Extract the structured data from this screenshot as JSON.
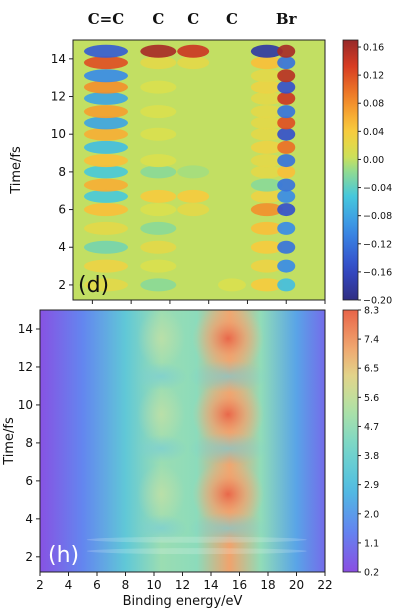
{
  "chart_data": [
    {
      "type": "heatmap",
      "panel_label": "(d)",
      "top_labels": [
        "C=C",
        "C",
        "C",
        "C",
        "Br"
      ],
      "top_label_positions": [
        10.7,
        13.4,
        15.2,
        17.2,
        20.0
      ],
      "xlim": [
        9,
        22
      ],
      "ylim": [
        1.2,
        15.0
      ],
      "ylabel": "Time/fs",
      "yticks": [
        2,
        4,
        6,
        8,
        10,
        12,
        14
      ],
      "colorbar": {
        "min": -0.2,
        "max": 0.17,
        "ticks": [
          0.16,
          0.12,
          0.08,
          0.04,
          0.0,
          -0.04,
          -0.08,
          -0.12,
          -0.16,
          -0.2
        ],
        "tick_labels": [
          "0.16",
          "0.12",
          "0.08",
          "0.04",
          "0.00",
          "−0.04",
          "−0.08",
          "−0.12",
          "−0.16",
          "−0.20"
        ],
        "colormap": "jet"
      },
      "columns": [
        10.7,
        13.4,
        15.2,
        17.2,
        19.0,
        20.0
      ],
      "bands": [
        {
          "t": 2.0,
          "values": [
            0.02,
            -0.02,
            0.0,
            0.01,
            0.04,
            -0.06
          ]
        },
        {
          "t": 3.0,
          "values": [
            0.03,
            0.01,
            0.0,
            0.0,
            0.03,
            -0.1
          ]
        },
        {
          "t": 4.0,
          "values": [
            -0.03,
            0.02,
            0.0,
            0.0,
            0.04,
            -0.12
          ]
        },
        {
          "t": 5.0,
          "values": [
            0.02,
            -0.02,
            0.0,
            0.0,
            0.05,
            -0.1
          ]
        },
        {
          "t": 6.0,
          "values": [
            0.05,
            0.01,
            0.02,
            0.0,
            0.08,
            -0.15
          ]
        },
        {
          "t": 6.7,
          "values": [
            -0.05,
            0.04,
            0.04,
            0.0,
            0.03,
            -0.1
          ]
        },
        {
          "t": 7.3,
          "values": [
            0.06,
            0.0,
            0.0,
            0.0,
            -0.02,
            -0.12
          ]
        },
        {
          "t": 8.0,
          "values": [
            -0.05,
            -0.02,
            -0.01,
            0.0,
            0.02,
            0.05
          ]
        },
        {
          "t": 8.6,
          "values": [
            0.05,
            0.01,
            0.0,
            0.0,
            0.02,
            -0.12
          ]
        },
        {
          "t": 9.3,
          "values": [
            -0.06,
            0.0,
            0.0,
            0.0,
            0.03,
            0.1
          ]
        },
        {
          "t": 10.0,
          "values": [
            0.06,
            0.01,
            0.0,
            0.0,
            0.02,
            -0.15
          ]
        },
        {
          "t": 10.6,
          "values": [
            -0.08,
            0.0,
            0.0,
            0.0,
            0.02,
            0.12
          ]
        },
        {
          "t": 11.2,
          "values": [
            0.07,
            0.01,
            0.0,
            0.0,
            0.02,
            -0.12
          ]
        },
        {
          "t": 11.9,
          "values": [
            -0.08,
            0.0,
            0.0,
            0.0,
            0.02,
            0.14
          ]
        },
        {
          "t": 12.5,
          "values": [
            0.08,
            0.01,
            0.0,
            0.0,
            0.03,
            -0.15
          ]
        },
        {
          "t": 13.1,
          "values": [
            -0.1,
            0.0,
            0.0,
            0.0,
            0.02,
            0.15
          ]
        },
        {
          "t": 13.8,
          "values": [
            0.12,
            0.02,
            0.02,
            0.0,
            0.05,
            -0.12
          ]
        },
        {
          "t": 14.4,
          "values": [
            -0.14,
            0.16,
            0.14,
            0.0,
            -0.18,
            0.16
          ]
        }
      ]
    },
    {
      "type": "heatmap",
      "panel_label": "(h)",
      "xlabel": "Binding energy/eV",
      "xlim": [
        2,
        22
      ],
      "xticks": [
        2,
        4,
        6,
        8,
        10,
        12,
        14,
        16,
        18,
        20,
        22
      ],
      "ylim": [
        1.2,
        15.0
      ],
      "ylabel": "Time/fs",
      "yticks": [
        2,
        4,
        6,
        8,
        10,
        12,
        14
      ],
      "colorbar": {
        "min": 0.2,
        "max": 8.3,
        "ticks": [
          8.3,
          7.4,
          6.5,
          5.6,
          4.7,
          3.8,
          2.9,
          2.0,
          1.1,
          0.2
        ],
        "tick_labels": [
          "8.3",
          "7.4",
          "6.5",
          "5.6",
          "4.7",
          "3.8",
          "2.9",
          "2.0",
          "1.1",
          "0.2"
        ],
        "colormap": "rainbow"
      },
      "profile": {
        "energies": [
          2,
          5,
          8,
          10.5,
          13,
          15.3,
          17.5,
          20,
          22
        ],
        "levels": [
          0.3,
          1.5,
          3.3,
          4.8,
          4.5,
          7.2,
          4.6,
          2.2,
          0.9
        ]
      },
      "time_peaks": [
        5.3,
        9.5,
        13.5
      ],
      "time_dips": [
        3.5,
        7.7,
        11.5
      ]
    }
  ]
}
